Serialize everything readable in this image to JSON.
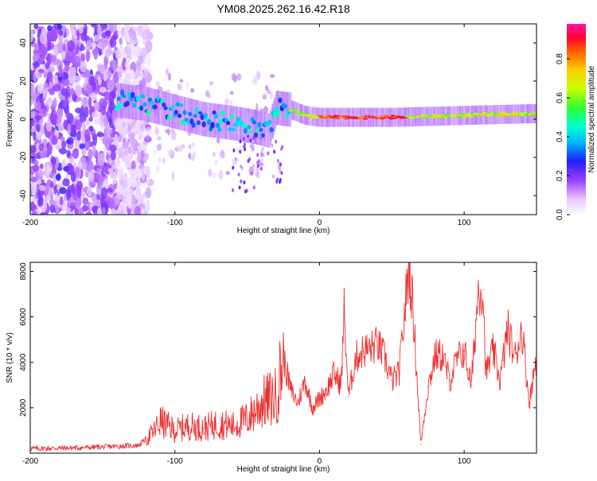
{
  "chart_data": {
    "title": "YM08.2025.262.16.42.R18",
    "colors": {
      "line": "#ee3030",
      "axis": "#000000"
    },
    "colorbar": {
      "label": "Normalized spectral amplitude",
      "range": [
        0.0,
        0.98
      ],
      "ticks": [
        0.0,
        0.2,
        0.4,
        0.6,
        0.8
      ],
      "tick_labels": [
        "0.0",
        "0.2",
        "0.4",
        "0.6",
        "0.8"
      ]
    },
    "panels": [
      {
        "type": "heatmap",
        "xlabel": "Height of straight line (km)",
        "ylabel": "Frequency (Hz)",
        "xlim": [
          -200,
          150
        ],
        "ylim": [
          -50,
          50
        ],
        "xticks": [
          -200,
          -100,
          0,
          100
        ],
        "xtick_labels": [
          "-200",
          "-100",
          "0",
          "100"
        ],
        "yticks": [
          -40,
          -20,
          0,
          20,
          40
        ],
        "ytick_labels": [
          "-40",
          "-20",
          "0",
          "20",
          "40"
        ],
        "ridge": [
          {
            "x": -140,
            "y": 10
          },
          {
            "x": -120,
            "y": 8
          },
          {
            "x": -100,
            "y": 4
          },
          {
            "x": -80,
            "y": 0
          },
          {
            "x": -60,
            "y": -2
          },
          {
            "x": -45,
            "y": -4
          },
          {
            "x": -35,
            "y": -6
          },
          {
            "x": -30,
            "y": 6
          },
          {
            "x": -20,
            "y": 5
          },
          {
            "x": -10,
            "y": 2
          },
          {
            "x": 0,
            "y": 1
          },
          {
            "x": 50,
            "y": 1
          },
          {
            "x": 100,
            "y": 2
          },
          {
            "x": 150,
            "y": 3
          }
        ],
        "noise_region": {
          "x_from": -200,
          "x_to": -125
        }
      },
      {
        "type": "line",
        "series_name": "SNR",
        "xlabel": "Height of straight line (km)",
        "ylabel": "SNR (10 * v/v)",
        "xlim": [
          -200,
          150
        ],
        "ylim": [
          0,
          8400
        ],
        "xticks": [
          -200,
          -100,
          0,
          100
        ],
        "xtick_labels": [
          "-200",
          "-100",
          "0",
          "100"
        ],
        "yticks": [
          2000,
          4000,
          6000,
          8000
        ],
        "ytick_labels": [
          "2000",
          "4000",
          "6000",
          "8000"
        ],
        "x": [
          -200,
          -180,
          -160,
          -140,
          -125,
          -115,
          -110,
          -100,
          -90,
          -80,
          -70,
          -60,
          -50,
          -40,
          -30,
          -25,
          -20,
          -15,
          -10,
          -5,
          0,
          5,
          10,
          15,
          17,
          20,
          25,
          30,
          35,
          40,
          45,
          50,
          55,
          60,
          62,
          65,
          70,
          75,
          80,
          85,
          90,
          95,
          100,
          105,
          110,
          113,
          115,
          120,
          125,
          130,
          135,
          140,
          145,
          150
        ],
        "y": [
          200,
          220,
          250,
          300,
          350,
          900,
          1400,
          1000,
          1200,
          1100,
          1300,
          1200,
          1500,
          2200,
          2500,
          4200,
          2800,
          2200,
          3200,
          2000,
          2400,
          2800,
          3500,
          3000,
          6300,
          2500,
          4200,
          4500,
          4600,
          4800,
          4200,
          3200,
          3500,
          7000,
          8300,
          6000,
          400,
          2900,
          4300,
          4300,
          3200,
          4100,
          4500,
          3000,
          7400,
          7200,
          3500,
          4500,
          3200,
          5500,
          4200,
          5500,
          2200,
          4300
        ]
      }
    ]
  }
}
